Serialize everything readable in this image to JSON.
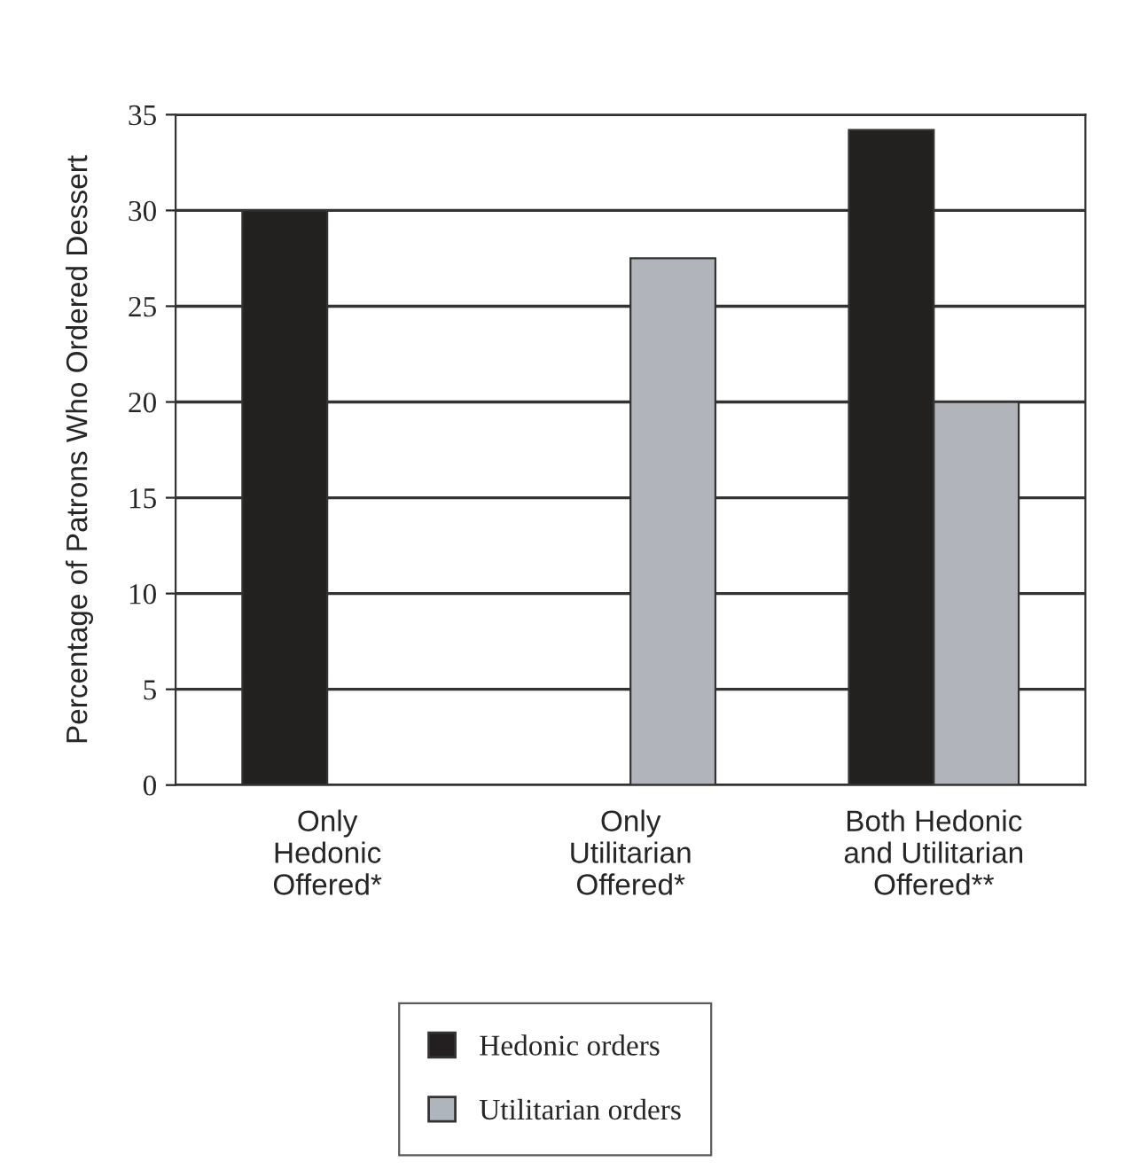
{
  "chart_data": {
    "type": "bar",
    "ylabel": "Percentage of Patrons Who Ordered Dessert",
    "categories": [
      "Only\nHedonic\nOffered*",
      "Only\nUtilitarian\nOffered*",
      "Both Hedonic\nand Utilitarian\nOffered**"
    ],
    "series": [
      {
        "name": "Hedonic orders",
        "color": "#231f20",
        "values": [
          30,
          null,
          34.2
        ]
      },
      {
        "name": "Utilitarian orders",
        "color": "#afb5bd",
        "values": [
          null,
          27.5,
          20
        ]
      }
    ],
    "ylim": [
      0,
      35
    ],
    "yticks": [
      0,
      5,
      10,
      15,
      20,
      25,
      30,
      35
    ],
    "grid": "y",
    "legend": "bottom"
  }
}
